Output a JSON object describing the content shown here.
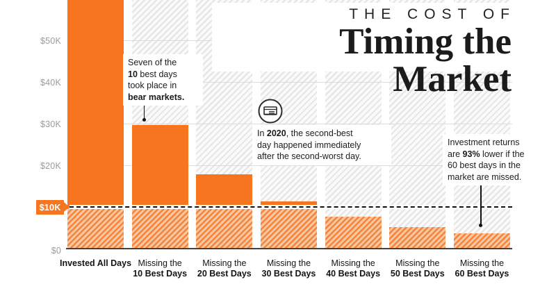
{
  "title": {
    "kicker": "THE COST OF",
    "main": "Timing the Market"
  },
  "chart_data": {
    "type": "bar",
    "title": "The Cost of Timing the Market",
    "categories": [
      "Invested All Days",
      "Missing the 10 Best Days",
      "Missing the 20 Best Days",
      "Missing the 30 Best Days",
      "Missing the 40 Best Days",
      "Missing the 50 Best Days",
      "Missing the 60 Best Days"
    ],
    "values": [
      64.8,
      29.7,
      17.8,
      11.3,
      7.7,
      5.2,
      3.7
    ],
    "unit": "USD thousands",
    "xlabel": "",
    "ylabel": "",
    "ylim": [
      0,
      59.7
    ],
    "grid": true,
    "bar_color": "#F7751F",
    "first_bar_clipped_at_top": true,
    "yticks": [
      {
        "value": 50,
        "label": "$50K"
      },
      {
        "value": 40,
        "label": "$40K"
      },
      {
        "value": 30,
        "label": "$30K"
      },
      {
        "value": 20,
        "label": "$20K"
      },
      {
        "value": 10,
        "label": "$10K"
      },
      {
        "value": 0,
        "label": "$0"
      }
    ],
    "threshold": {
      "value": 10,
      "label": "$10K",
      "style": "dashed-black-line"
    }
  },
  "x_labels": [
    {
      "line1": "Invested All Days",
      "line2": "",
      "bold_line1": true
    },
    {
      "line1": "Missing the",
      "line2": "10 Best Days",
      "bold_line1": false
    },
    {
      "line1": "Missing the",
      "line2": "20 Best Days",
      "bold_line1": false
    },
    {
      "line1": "Missing the",
      "line2": "30 Best Days",
      "bold_line1": false
    },
    {
      "line1": "Missing the",
      "line2": "40 Best Days",
      "bold_line1": false
    },
    {
      "line1": "Missing the",
      "line2": "50 Best Days",
      "bold_line1": false
    },
    {
      "line1": "Missing the",
      "line2": "60 Best Days",
      "bold_line1": false
    }
  ],
  "annotations": [
    {
      "id": "bear",
      "lines": [
        "Seven of the",
        "**10** best days",
        "took place in",
        "**bear markets.**"
      ]
    },
    {
      "id": "2020",
      "lines": [
        "In **2020**, the second-best",
        "day happened immediately",
        "after the second-worst day."
      ]
    },
    {
      "id": "returns",
      "lines": [
        "Investment returns",
        "are **93%** lower if the",
        "60 best days in the",
        "market are missed."
      ]
    }
  ],
  "icons": {
    "newspaper": "newspaper-icon"
  },
  "colors": {
    "orange": "#F7751F",
    "orange_hatch_stripe": "#F5833C",
    "orange_hatch_bg": "#F9C7A0",
    "gray_hatch_stripe": "#E4E4E4",
    "gridline": "#DCDCDC",
    "text": "#1A1A1A",
    "axis_label": "#9B9B9B",
    "threshold_line": "#101010"
  }
}
